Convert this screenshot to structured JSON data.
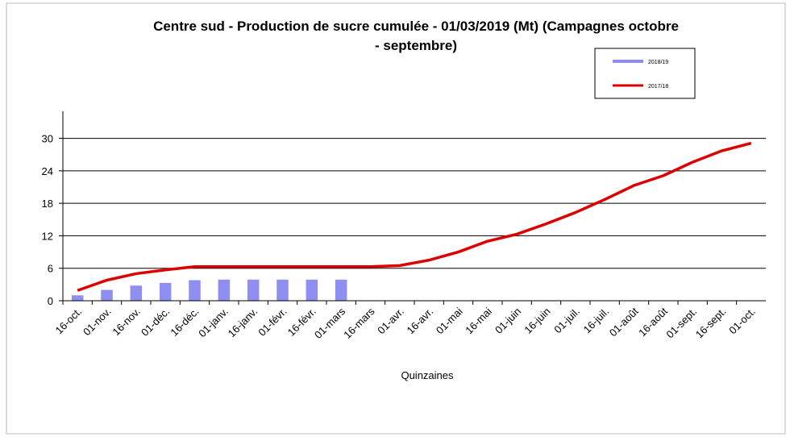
{
  "chart_data": {
    "type": "bar+line",
    "title": "Centre sud - Production de sucre cumulée - 01/03/2019 (Mt) (Campagnes octobre - septembre)",
    "x_label": "Quinzaines",
    "categories": [
      "16-oct.",
      "01-nov.",
      "16-nov.",
      "01-déc.",
      "16-déc.",
      "01-janv.",
      "16-janv.",
      "01-févr.",
      "16-févr.",
      "01-mars",
      "16-mars",
      "01-avr.",
      "16-avr.",
      "01-mai",
      "16-mai",
      "01-juin",
      "16-juin",
      "01-juil.",
      "16-juil.",
      "01-août",
      "16-août",
      "01-sept.",
      "16-sept.",
      "01-oct."
    ],
    "series": [
      {
        "name": "2018/19",
        "type": "bar",
        "color": "#8f8ff2",
        "values": [
          1.0,
          2.0,
          2.8,
          3.3,
          3.8,
          3.9,
          3.9,
          3.9,
          3.9,
          3.9,
          null,
          null,
          null,
          null,
          null,
          null,
          null,
          null,
          null,
          null,
          null,
          null,
          null,
          null
        ]
      },
      {
        "name": "2017/18",
        "type": "line",
        "color": "#dd0000",
        "values": [
          1.9,
          3.8,
          5.0,
          5.7,
          6.3,
          6.3,
          6.3,
          6.3,
          6.3,
          6.3,
          6.3,
          6.5,
          7.5,
          9.0,
          11.0,
          12.3,
          14.2,
          16.3,
          18.7,
          21.3,
          23.1,
          25.6,
          27.7,
          29.1
        ]
      }
    ],
    "ylim": [
      0,
      35
    ],
    "yticks": [
      0,
      6,
      12,
      18,
      24,
      30
    ],
    "grid": true
  }
}
